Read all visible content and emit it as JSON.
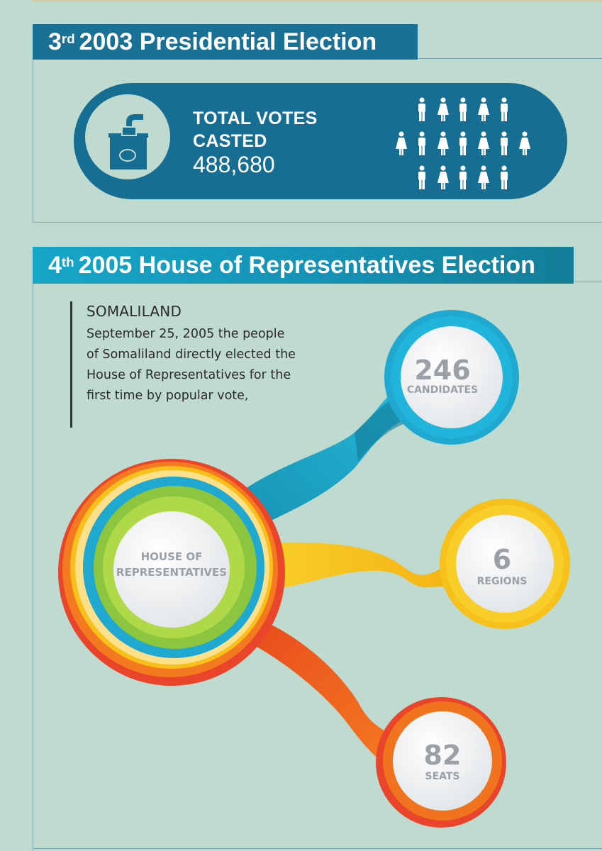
{
  "section_3": {
    "ordinal": "3",
    "ordinal_suffix": "rd",
    "title": "2003 Presidential Election",
    "votes_line1": "TOTAL VOTES",
    "votes_line2": "CASTED",
    "votes_value": "488,680",
    "ballot_icon": "ballot-box-icon",
    "people_icon": "people-icons"
  },
  "section_4": {
    "ordinal": "4",
    "ordinal_suffix": "th",
    "title": "2005 House of Representatives Election",
    "region_title": "SOMALILAND",
    "description": "September 25, 2005 the people of Somaliland directly elected the House of Representatives for the first time by popular vote,",
    "hub_line1": "HOUSE OF",
    "hub_line2": "REPRESENTATIVES",
    "stats": [
      {
        "value": "246",
        "label": "CANDIDATES",
        "color": "#1fa9d0"
      },
      {
        "value": "6",
        "label": "REGIONS",
        "color": "#f6c11a"
      },
      {
        "value": "82",
        "label": "SEATS",
        "color": "#f0731e"
      }
    ]
  },
  "colors": {
    "background": "#bfdace",
    "dark_blue": "#166e92",
    "header_blue": "#1a7196",
    "cyan": "#1fa9d0",
    "yellow": "#f6c11a",
    "orange": "#f0731e",
    "green": "#8cc63f"
  }
}
